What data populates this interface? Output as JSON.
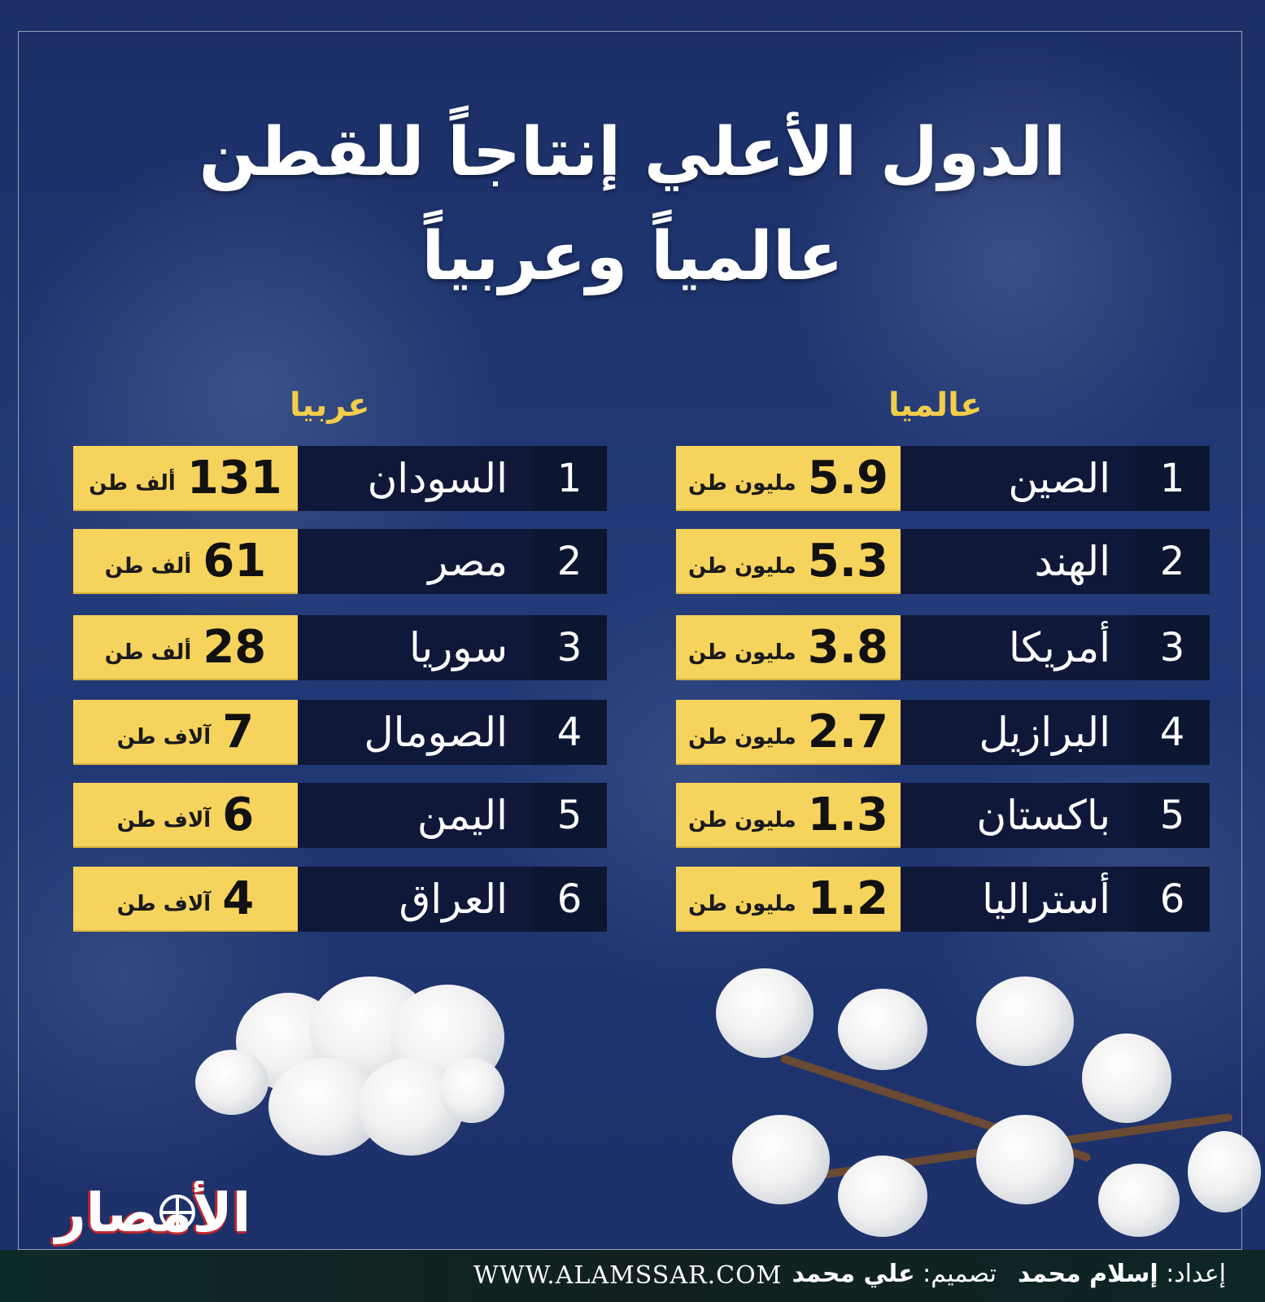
{
  "title": {
    "line1": "الدول الأعلي إنتاجاً للقطن",
    "line2": "عالمياً وعربياً"
  },
  "world": {
    "label": "عالميا",
    "rows": [
      {
        "rank": "1",
        "country": "الصين",
        "value": "5.9",
        "unit": "مليون طن"
      },
      {
        "rank": "2",
        "country": "الهند",
        "value": "5.3",
        "unit": "مليون طن"
      },
      {
        "rank": "3",
        "country": "أمريكا",
        "value": "3.8",
        "unit": "مليون طن"
      },
      {
        "rank": "4",
        "country": "البرازيل",
        "value": "2.7",
        "unit": "مليون طن"
      },
      {
        "rank": "5",
        "country": "باكستان",
        "value": "1.3",
        "unit": "مليون طن"
      },
      {
        "rank": "6",
        "country": "أستراليا",
        "value": "1.2",
        "unit": "مليون طن"
      }
    ]
  },
  "arab": {
    "label": "عربيا",
    "rows": [
      {
        "rank": "1",
        "country": "السودان",
        "value": "131",
        "unit": "ألف طن"
      },
      {
        "rank": "2",
        "country": "مصر",
        "value": "61",
        "unit": "ألف طن"
      },
      {
        "rank": "3",
        "country": "سوريا",
        "value": "28",
        "unit": "ألف طن"
      },
      {
        "rank": "4",
        "country": "الصومال",
        "value": "7",
        "unit": "آلاف طن"
      },
      {
        "rank": "5",
        "country": "اليمن",
        "value": "6",
        "unit": "آلاف طن"
      },
      {
        "rank": "6",
        "country": "العراق",
        "value": "4",
        "unit": "آلاف طن"
      }
    ]
  },
  "footer": {
    "prepared_label": "إعداد:",
    "prepared_name": "إسلام محمد",
    "separator": "ـ",
    "design_label": "تصميم:",
    "design_name": "علي محمد",
    "website": "WWW.ALAMSSAR.COM"
  },
  "logo": {
    "text": "الأمصار",
    "icon": "globe-icon"
  },
  "colors": {
    "accent_yellow": "#f6d35c",
    "label_yellow": "#f3cd4a",
    "background_blue": "#223a78",
    "row_dark": "#10183a",
    "logo_red": "#c0262c"
  }
}
